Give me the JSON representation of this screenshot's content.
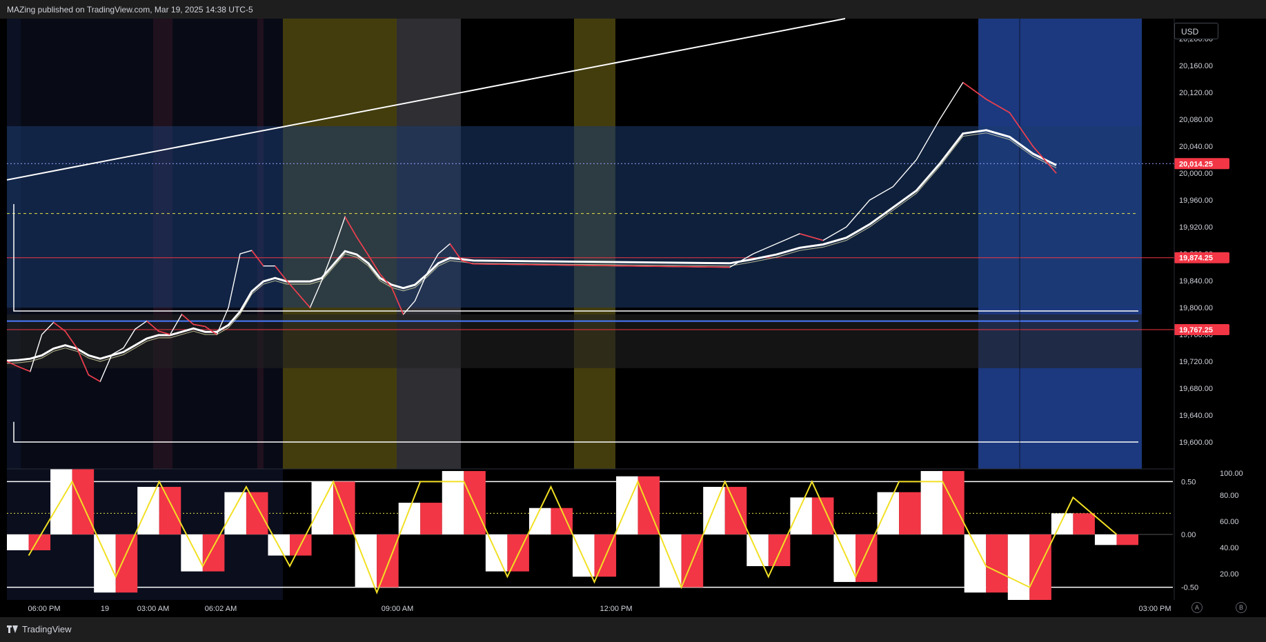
{
  "header": {
    "publish_note": "MAZing published on TradingView.com, Mar 19, 2025 14:38 UTC-5"
  },
  "toolbar": {
    "currency_label": "USD",
    "scale_a_label": "A",
    "scale_b_label": "B"
  },
  "footer": {
    "brand_label": "TradingView"
  },
  "colors": {
    "background": "#000000",
    "price_line": "#ffffff",
    "price_down": "#f23645",
    "oscillator_line": "#f2e024",
    "value_zone": "#1c3a6e",
    "session_yellow": "#4a4410",
    "session_gray": "#3a3a40",
    "session_red": "#5a1820",
    "session_blue": "#1f3e8c",
    "last_price_badge": "#f23645"
  },
  "chart_data": [
    {
      "type": "line",
      "pane": "price",
      "ylim": [
        19560,
        20230
      ],
      "y_ticks": [
        "20,200.00",
        "20,160.00",
        "20,120.00",
        "20,080.00",
        "20,040.00",
        "20,000.00",
        "19,960.00",
        "19,920.00",
        "19,880.00",
        "19,840.00",
        "19,800.00",
        "19,760.00",
        "19,720.00",
        "19,680.00",
        "19,640.00",
        "19,600.00"
      ],
      "y_tick_values": [
        20200,
        20160,
        20120,
        20080,
        20040,
        20000,
        19960,
        19920,
        19880,
        19840,
        19800,
        19760,
        19720,
        19680,
        19640,
        19600
      ],
      "x_ticks": [
        "06:00 PM",
        "19",
        "03:00 AM",
        "06:02 AM",
        "09:00 AM",
        "12:00 PM",
        "03:00 PM"
      ],
      "x": [
        0,
        2,
        4,
        6,
        8,
        10,
        12,
        14,
        16,
        18,
        20,
        22,
        24,
        26,
        28,
        30,
        32,
        34,
        36,
        38,
        40,
        42,
        44,
        46,
        48,
        50,
        52,
        54,
        56,
        58,
        60,
        62,
        64,
        66,
        68,
        70,
        72,
        74,
        76,
        78,
        80
      ],
      "series": [
        {
          "values": [
            19720,
            19712,
            19705,
            19760,
            19778,
            19765,
            19740,
            19700,
            19690,
            19730,
            19740,
            19768,
            19780,
            19765,
            19760,
            19790,
            19775,
            19772,
            19760,
            19800,
            19880,
            19885,
            19862,
            19862,
            19840,
            19820,
            19800,
            19840,
            19885,
            19935,
            19905,
            19878,
            19850,
            19830,
            19790,
            19810,
            19850,
            19880,
            19895,
            19870,
            19865
          ]
        },
        {
          "values": [
            19717,
            19718,
            19720,
            19725,
            19735,
            19740,
            19735,
            19725,
            19720,
            19725,
            19730,
            19740,
            19750,
            19755,
            19755,
            19760,
            19765,
            19760,
            19760,
            19770,
            19790,
            19820,
            19835,
            19840,
            19835,
            19835,
            19835,
            19840,
            19860,
            19880,
            19875,
            19862,
            19840,
            19830,
            19825,
            19830,
            19845,
            19862,
            19870,
            19868,
            19866
          ]
        }
      ],
      "segment_x": [
        40,
        44,
        48,
        52,
        56,
        60,
        64,
        68,
        72,
        76,
        80,
        84,
        88,
        92,
        96,
        100
      ],
      "price_late": [
        19865,
        19860,
        19880,
        19895,
        19910,
        19900,
        19920,
        19960,
        19980,
        20020,
        20080,
        20135,
        20110,
        20090,
        20040,
        20000
      ],
      "ema_late": [
        19866,
        19862,
        19868,
        19875,
        19885,
        19890,
        19900,
        19920,
        19945,
        19970,
        20010,
        20055,
        20060,
        20050,
        20025,
        20008
      ],
      "annotations": {
        "last_price": "20,014.25",
        "level_upper_label": "19,874.25",
        "level_lower_label": "19,767.25"
      }
    },
    {
      "type": "bar",
      "pane": "oscillator",
      "ylim": [
        -0.62,
        0.62
      ],
      "left_ticks": [
        "0.50",
        "0.00",
        "-0.50"
      ],
      "left_tick_values": [
        0.5,
        0,
        -0.5
      ],
      "right_ticks": [
        "100.00",
        "80.00",
        "60.00",
        "40.00",
        "20.00"
      ],
      "right_tick_values": [
        100,
        80,
        60,
        40,
        20
      ],
      "x": [
        0,
        4,
        8,
        12,
        16,
        20,
        24,
        28,
        32,
        36,
        40,
        44,
        48,
        52,
        56,
        60,
        64,
        68,
        72,
        76,
        80,
        84,
        88,
        92,
        96,
        100
      ],
      "values": [
        -0.15,
        0.62,
        -0.55,
        0.45,
        -0.35,
        0.4,
        -0.2,
        0.5,
        -0.5,
        0.3,
        0.6,
        -0.35,
        0.25,
        -0.4,
        0.55,
        -0.5,
        0.45,
        -0.3,
        0.35,
        -0.45,
        0.4,
        0.6,
        -0.55,
        -0.62,
        0.2,
        -0.1
      ],
      "line_values": [
        -0.2,
        0.5,
        -0.4,
        0.5,
        -0.3,
        0.45,
        -0.3,
        0.5,
        -0.55,
        0.5,
        0.5,
        -0.4,
        0.45,
        -0.45,
        0.5,
        -0.5,
        0.5,
        -0.4,
        0.5,
        -0.4,
        0.5,
        0.5,
        -0.3,
        -0.5,
        0.35,
        0.0
      ]
    }
  ]
}
